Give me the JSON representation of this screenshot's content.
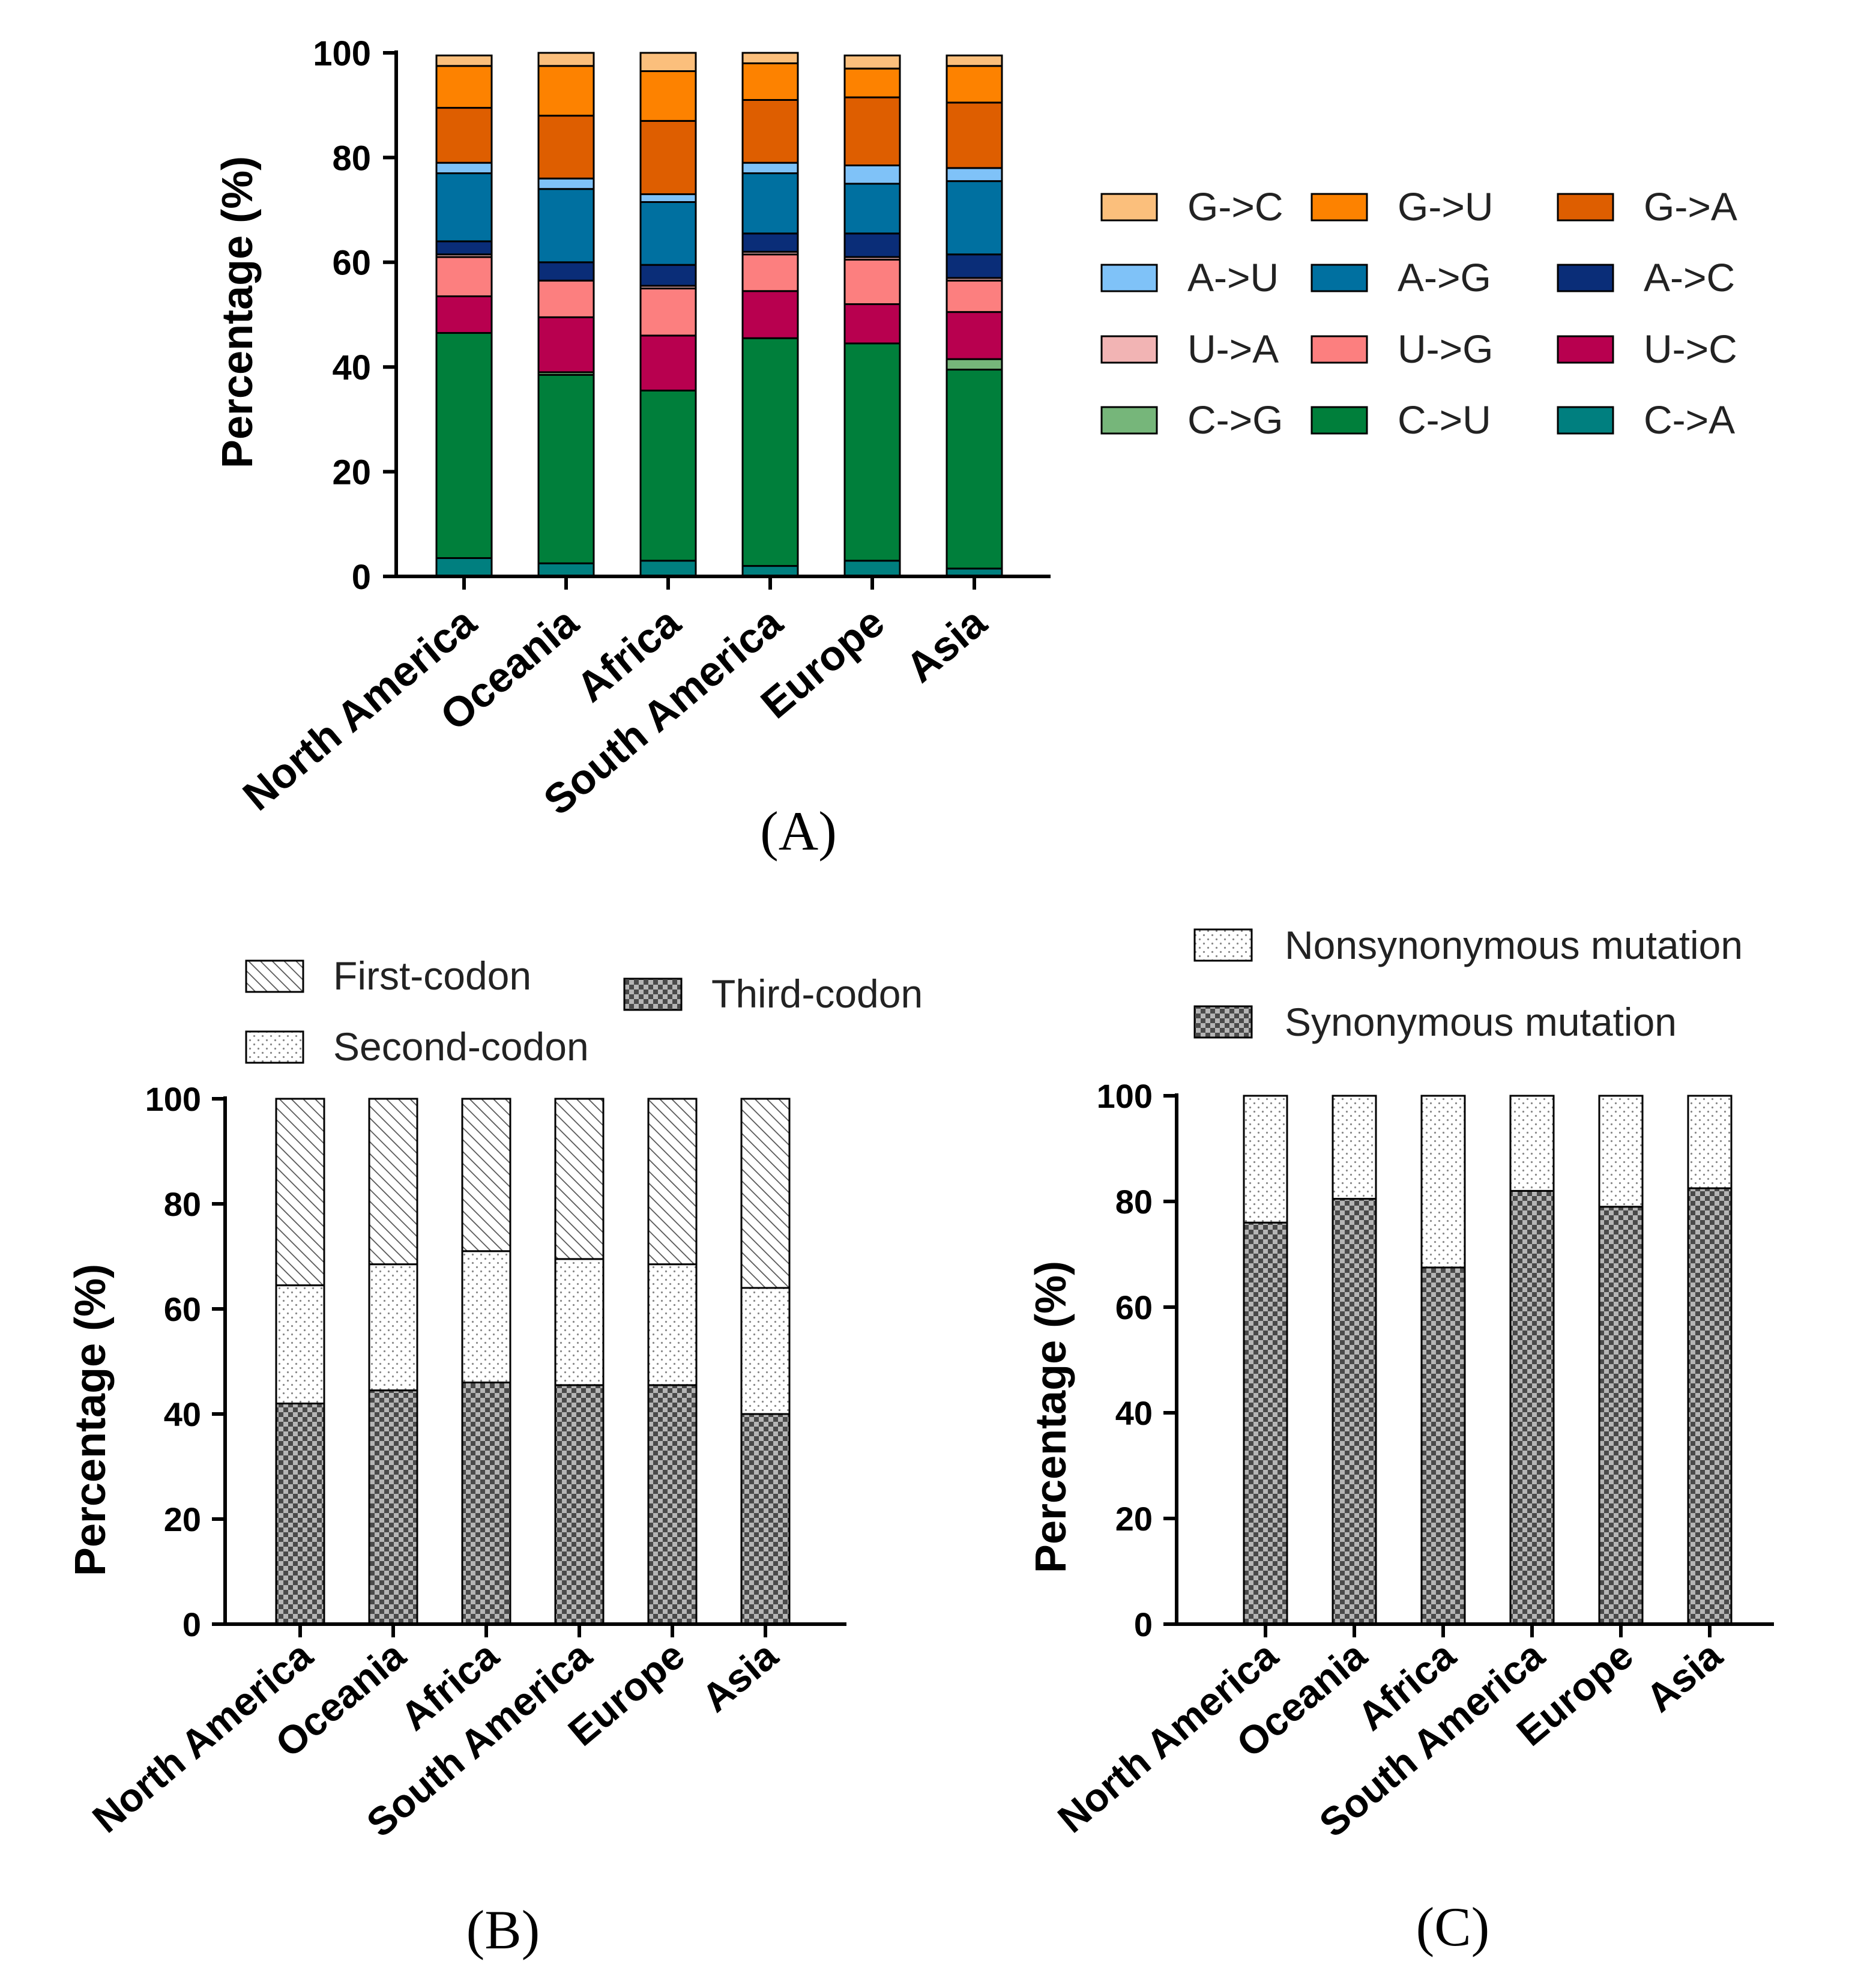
{
  "chart_data": [
    {
      "panel": "(A)",
      "type": "bar",
      "stacked": true,
      "ylabel": "Percentage (%)",
      "ylim": [
        0,
        100
      ],
      "yticks": [
        0,
        20,
        40,
        60,
        80,
        100
      ],
      "categories": [
        "North America",
        "Oceania",
        "Africa",
        "South America",
        "Europe",
        "Asia"
      ],
      "legend_position": "right",
      "series": [
        {
          "name": "C->A",
          "color": "#007f7f",
          "values": [
            3.5,
            2.5,
            3,
            2,
            3,
            1.5
          ]
        },
        {
          "name": "C->U",
          "color": "#007f3b",
          "values": [
            43,
            36,
            32.5,
            43.5,
            41.5,
            38
          ]
        },
        {
          "name": "C->G",
          "color": "#76b67a",
          "values": [
            0,
            0.5,
            0,
            0,
            0,
            2
          ]
        },
        {
          "name": "U->C",
          "color": "#b8004f",
          "values": [
            7,
            10.5,
            10.5,
            9,
            7.5,
            9
          ]
        },
        {
          "name": "U->G",
          "color": "#fc7f7f",
          "values": [
            7.5,
            7,
            9,
            7,
            8.5,
            6
          ]
        },
        {
          "name": "U->A",
          "color": "#f2b4b4",
          "values": [
            0.5,
            0,
            0.5,
            0.5,
            0.5,
            0.5
          ]
        },
        {
          "name": "A->C",
          "color": "#0a2d78",
          "values": [
            2.5,
            3.5,
            4,
            3.5,
            4.5,
            4.5
          ]
        },
        {
          "name": "A->G",
          "color": "#0070a0",
          "values": [
            13,
            14,
            12,
            11.5,
            9.5,
            14
          ]
        },
        {
          "name": "A->U",
          "color": "#7fc2f8",
          "values": [
            2,
            2,
            1.5,
            2,
            3.5,
            2.5
          ]
        },
        {
          "name": "G->A",
          "color": "#de5e00",
          "values": [
            10.5,
            12,
            14,
            12,
            13,
            12.5
          ]
        },
        {
          "name": "G->U",
          "color": "#fd8200",
          "values": [
            8,
            9.5,
            9.5,
            7,
            5.5,
            7
          ]
        },
        {
          "name": "G->C",
          "color": "#fbbf7c",
          "values": [
            2,
            2.5,
            3.5,
            2,
            2.5,
            2
          ]
        }
      ],
      "legend_order": [
        "G->C",
        "G->U",
        "G->A",
        "A->U",
        "A->G",
        "A->C",
        "U->A",
        "U->G",
        "U->C",
        "C->G",
        "C->U",
        "C->A"
      ]
    },
    {
      "panel": "(B)",
      "type": "bar",
      "stacked": true,
      "ylabel": "Percentage (%)",
      "ylim": [
        0,
        100
      ],
      "yticks": [
        0,
        20,
        40,
        60,
        80,
        100
      ],
      "categories": [
        "North America",
        "Oceania",
        "Africa",
        "South America",
        "Europe",
        "Asia"
      ],
      "legend_position": "top",
      "series": [
        {
          "name": "Third-codon",
          "pattern": "checker",
          "values": [
            42,
            44.5,
            46,
            45.5,
            45.5,
            40
          ]
        },
        {
          "name": "Second-codon",
          "pattern": "dots",
          "values": [
            22.5,
            24,
            25,
            24,
            23,
            24
          ]
        },
        {
          "name": "First-codon",
          "pattern": "hatch",
          "values": [
            35.5,
            31.5,
            29,
            30.5,
            31.5,
            36
          ]
        }
      ]
    },
    {
      "panel": "(C)",
      "type": "bar",
      "stacked": true,
      "ylabel": "Percentage (%)",
      "ylim": [
        0,
        100
      ],
      "yticks": [
        0,
        20,
        40,
        60,
        80,
        100
      ],
      "categories": [
        "North America",
        "Oceania",
        "Africa",
        "South America",
        "Europe",
        "Asia"
      ],
      "legend_position": "top",
      "series": [
        {
          "name": "Synonymous mutation",
          "pattern": "checker",
          "values": [
            76,
            80.5,
            67.5,
            82,
            79,
            82.5
          ]
        },
        {
          "name": "Nonsynonymous mutation",
          "pattern": "dots",
          "values": [
            24,
            19.5,
            32.5,
            18,
            21,
            17.5
          ]
        }
      ]
    }
  ]
}
